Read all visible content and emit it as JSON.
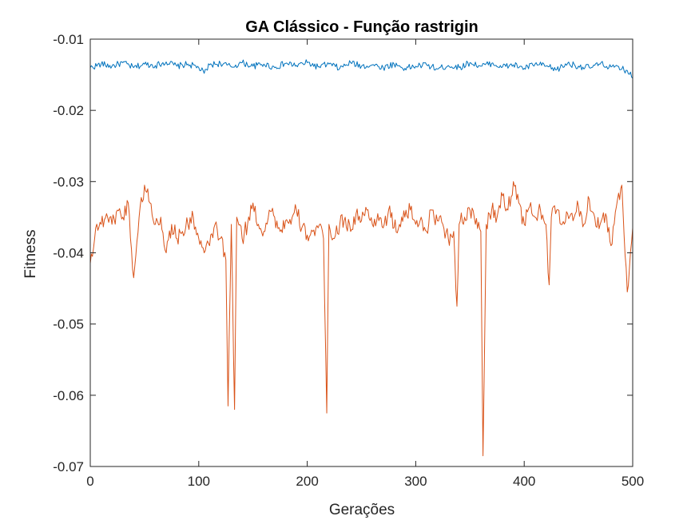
{
  "chart_data": {
    "type": "line",
    "title": "GA Clássico - Função rastrigin",
    "xlabel": "Gerações",
    "ylabel": "Fitness",
    "xlim": [
      0,
      500
    ],
    "ylim": [
      -0.07,
      -0.01
    ],
    "xticks": [
      0,
      100,
      200,
      300,
      400,
      500
    ],
    "xtick_labels": [
      "0",
      "100",
      "200",
      "300",
      "400",
      "500"
    ],
    "yticks": [
      -0.07,
      -0.06,
      -0.05,
      -0.04,
      -0.03,
      -0.02,
      -0.01
    ],
    "ytick_labels": [
      "-0.07",
      "-0.06",
      "-0.05",
      "-0.04",
      "-0.03",
      "-0.02",
      "-0.01"
    ],
    "grid": false,
    "box": true,
    "series": [
      {
        "color": "#0072BD",
        "x": [
          0,
          10,
          20,
          30,
          40,
          50,
          60,
          70,
          80,
          90,
          100,
          105,
          110,
          120,
          130,
          140,
          150,
          160,
          170,
          180,
          190,
          200,
          210,
          220,
          230,
          240,
          250,
          260,
          270,
          280,
          290,
          300,
          310,
          320,
          330,
          340,
          350,
          360,
          370,
          380,
          390,
          400,
          410,
          420,
          430,
          440,
          450,
          460,
          470,
          480,
          490,
          495,
          500
        ],
        "values": [
          -0.014,
          -0.0135,
          -0.0138,
          -0.0133,
          -0.014,
          -0.0135,
          -0.0137,
          -0.0132,
          -0.0138,
          -0.0135,
          -0.014,
          -0.0148,
          -0.0136,
          -0.0134,
          -0.0139,
          -0.0133,
          -0.0138,
          -0.0135,
          -0.014,
          -0.0134,
          -0.0137,
          -0.0133,
          -0.0139,
          -0.0135,
          -0.0141,
          -0.0133,
          -0.0138,
          -0.0136,
          -0.014,
          -0.0135,
          -0.0141,
          -0.0138,
          -0.0136,
          -0.0142,
          -0.0137,
          -0.014,
          -0.0133,
          -0.0138,
          -0.0134,
          -0.0139,
          -0.0136,
          -0.0141,
          -0.0135,
          -0.0138,
          -0.0143,
          -0.0134,
          -0.0138,
          -0.014,
          -0.0135,
          -0.0139,
          -0.0142,
          -0.0144,
          -0.0155
        ]
      },
      {
        "color": "#D95319",
        "x": [
          0,
          5,
          10,
          15,
          20,
          25,
          30,
          35,
          40,
          45,
          50,
          55,
          60,
          65,
          70,
          75,
          80,
          85,
          90,
          95,
          100,
          105,
          110,
          115,
          120,
          125,
          127,
          130,
          133,
          135,
          140,
          145,
          150,
          155,
          160,
          165,
          170,
          175,
          180,
          185,
          190,
          195,
          200,
          205,
          210,
          215,
          218,
          220,
          225,
          230,
          235,
          240,
          245,
          250,
          255,
          260,
          265,
          270,
          275,
          280,
          285,
          290,
          295,
          300,
          305,
          310,
          315,
          320,
          325,
          330,
          335,
          338,
          340,
          345,
          350,
          355,
          360,
          362,
          365,
          370,
          375,
          380,
          385,
          390,
          395,
          400,
          405,
          410,
          415,
          420,
          423,
          425,
          430,
          435,
          440,
          445,
          450,
          455,
          460,
          465,
          470,
          475,
          480,
          485,
          490,
          495,
          500
        ],
        "values": [
          -0.0415,
          -0.0365,
          -0.036,
          -0.0345,
          -0.036,
          -0.034,
          -0.035,
          -0.033,
          -0.0435,
          -0.035,
          -0.0305,
          -0.033,
          -0.036,
          -0.035,
          -0.04,
          -0.036,
          -0.038,
          -0.037,
          -0.036,
          -0.035,
          -0.038,
          -0.04,
          -0.039,
          -0.036,
          -0.038,
          -0.041,
          -0.0615,
          -0.036,
          -0.062,
          -0.035,
          -0.038,
          -0.036,
          -0.033,
          -0.036,
          -0.037,
          -0.034,
          -0.035,
          -0.037,
          -0.0355,
          -0.036,
          -0.034,
          -0.0365,
          -0.0375,
          -0.037,
          -0.0365,
          -0.038,
          -0.0625,
          -0.036,
          -0.038,
          -0.036,
          -0.035,
          -0.037,
          -0.0345,
          -0.0355,
          -0.034,
          -0.036,
          -0.0345,
          -0.0365,
          -0.034,
          -0.0365,
          -0.036,
          -0.035,
          -0.034,
          -0.036,
          -0.035,
          -0.037,
          -0.034,
          -0.0355,
          -0.036,
          -0.038,
          -0.037,
          -0.0475,
          -0.036,
          -0.035,
          -0.034,
          -0.036,
          -0.037,
          -0.0685,
          -0.036,
          -0.034,
          -0.035,
          -0.032,
          -0.034,
          -0.03,
          -0.033,
          -0.036,
          -0.0335,
          -0.035,
          -0.034,
          -0.036,
          -0.0445,
          -0.035,
          -0.034,
          -0.036,
          -0.0345,
          -0.0355,
          -0.0335,
          -0.036,
          -0.0325,
          -0.035,
          -0.036,
          -0.0345,
          -0.039,
          -0.0335,
          -0.0305,
          -0.0455,
          -0.0365
        ]
      }
    ]
  }
}
